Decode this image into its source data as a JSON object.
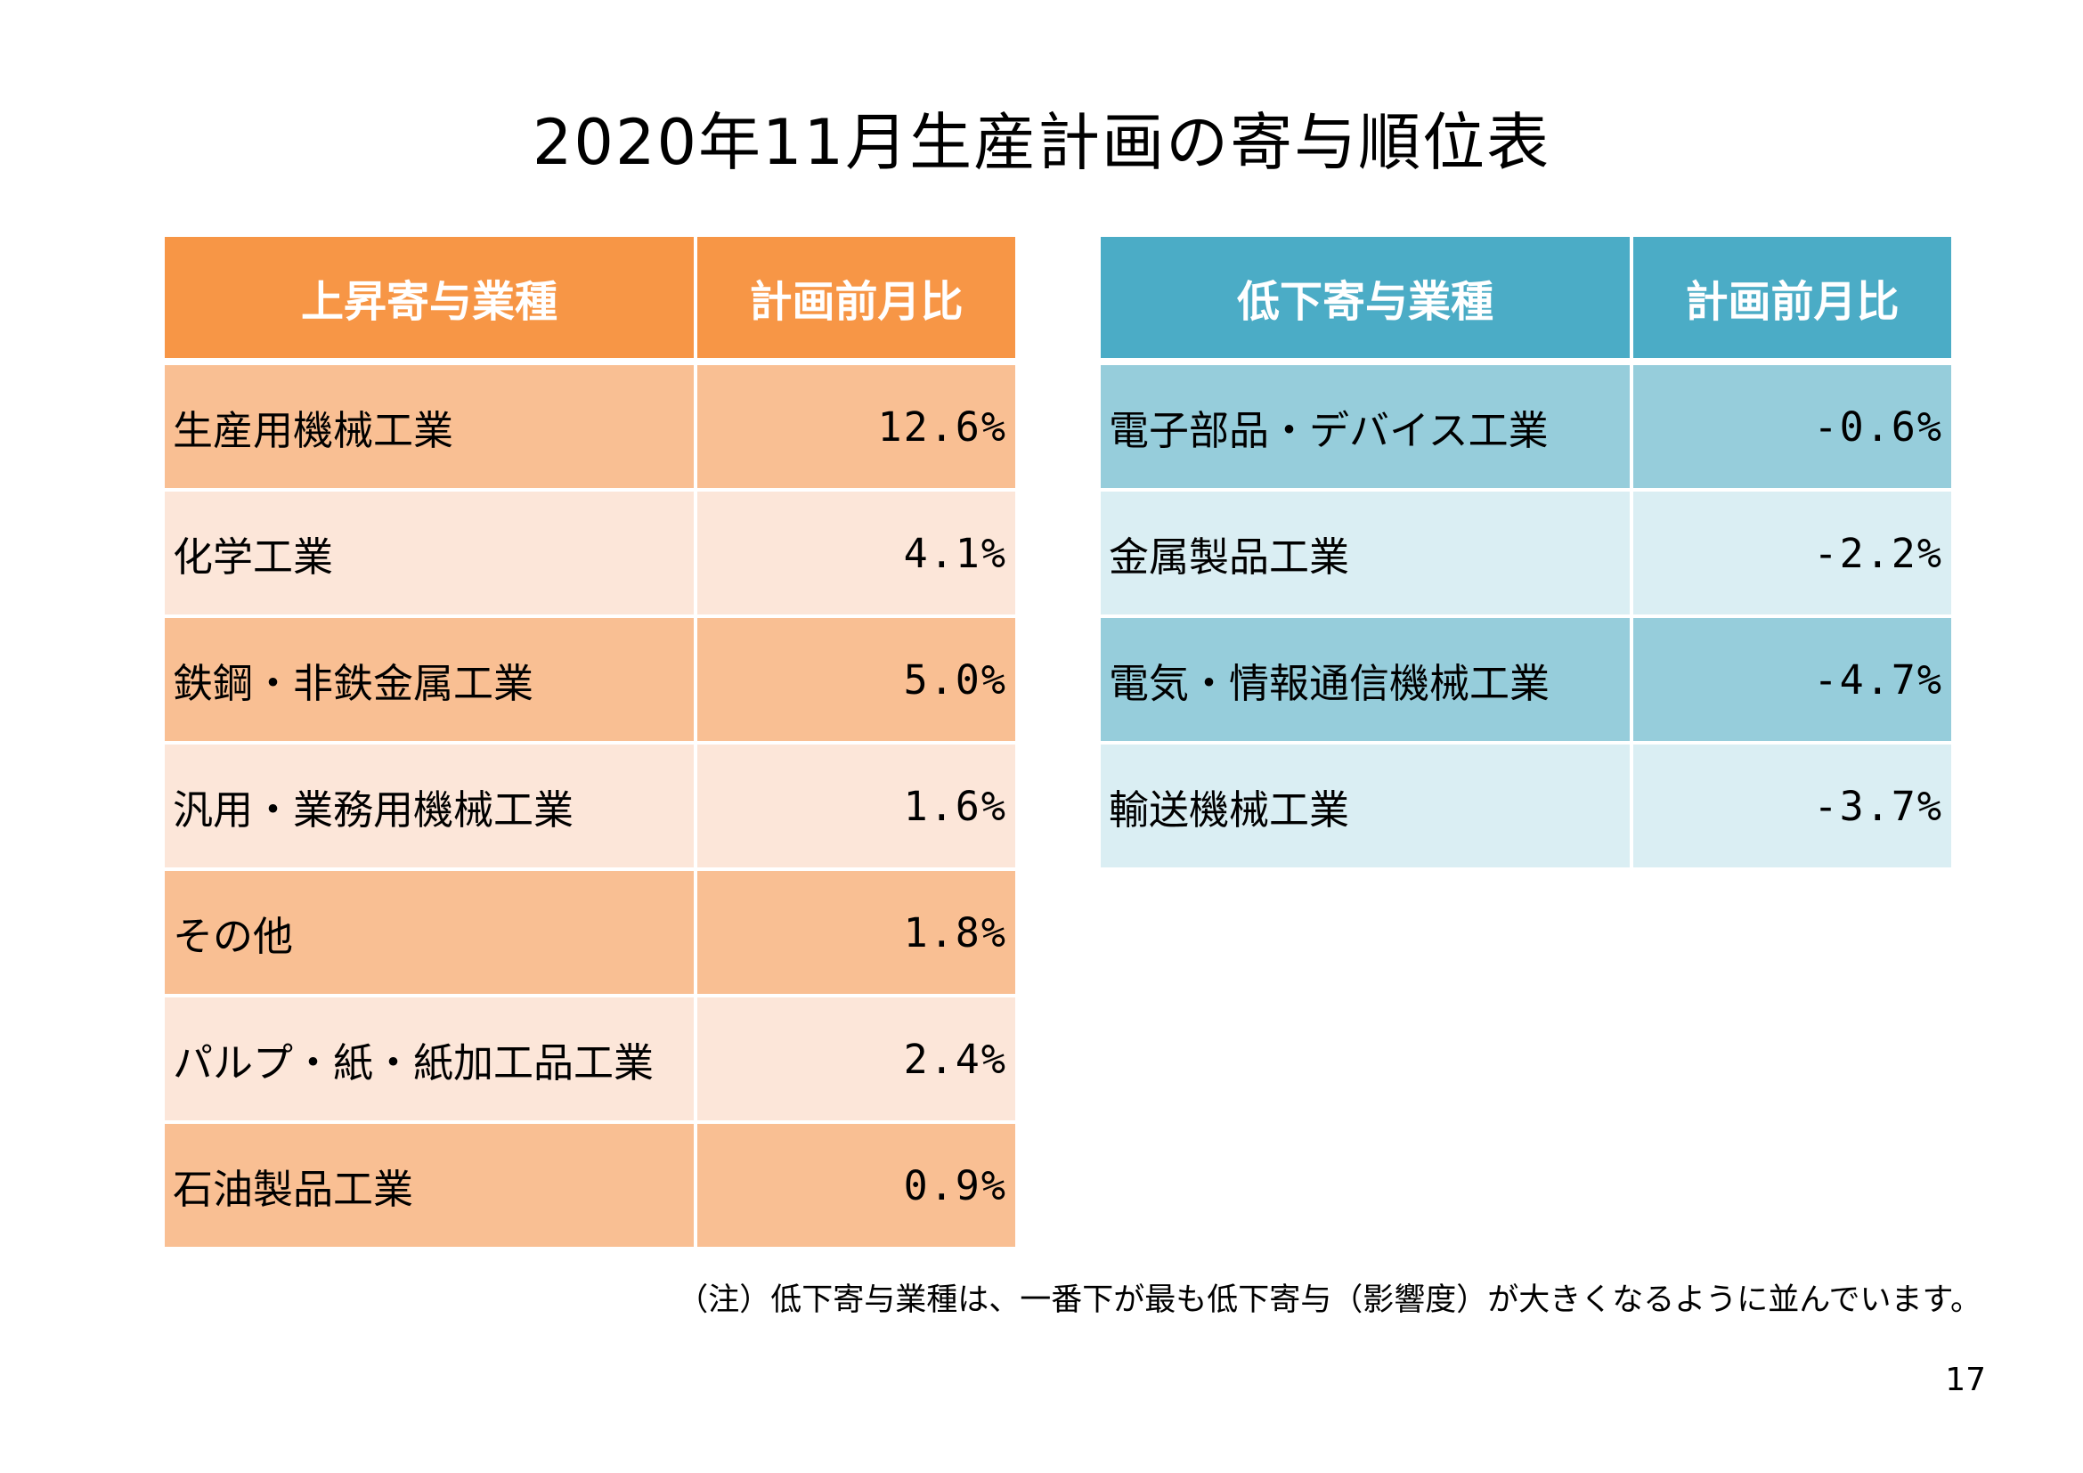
{
  "title": "2020年11月生産計画の寄与順位表",
  "colors": {
    "rise_header": "#F79646",
    "rise_row_dark": "#F9BF93",
    "rise_row_light": "#FCE6D9",
    "fall_header": "#4BACC6",
    "fall_row_dark": "#96CDDB",
    "fall_row_light": "#DAEEF3",
    "header_text": "#FFFFFF"
  },
  "rise_table": {
    "headers": [
      "上昇寄与業種",
      "計画前月比"
    ],
    "rows": [
      {
        "industry": "生産用機械工業",
        "change": "12.6%"
      },
      {
        "industry": "化学工業",
        "change": "4.1%"
      },
      {
        "industry": "鉄鋼・非鉄金属工業",
        "change": "5.0%"
      },
      {
        "industry": "汎用・業務用機械工業",
        "change": "1.6%"
      },
      {
        "industry": "その他",
        "change": "1.8%"
      },
      {
        "industry": "パルプ・紙・紙加工品工業",
        "change": "2.4%"
      },
      {
        "industry": "石油製品工業",
        "change": "0.9%"
      }
    ]
  },
  "fall_table": {
    "headers": [
      "低下寄与業種",
      "計画前月比"
    ],
    "rows": [
      {
        "industry": "電子部品・デバイス工業",
        "change": "-0.6%"
      },
      {
        "industry": "金属製品工業",
        "change": "-2.2%"
      },
      {
        "industry": "電気・情報通信機械工業",
        "change": "-4.7%"
      },
      {
        "industry": "輸送機械工業",
        "change": "-3.7%"
      }
    ]
  },
  "note": "（注）低下寄与業種は、一番下が最も低下寄与（影響度）が大きくなるように並んでいます。",
  "page_number": "17"
}
